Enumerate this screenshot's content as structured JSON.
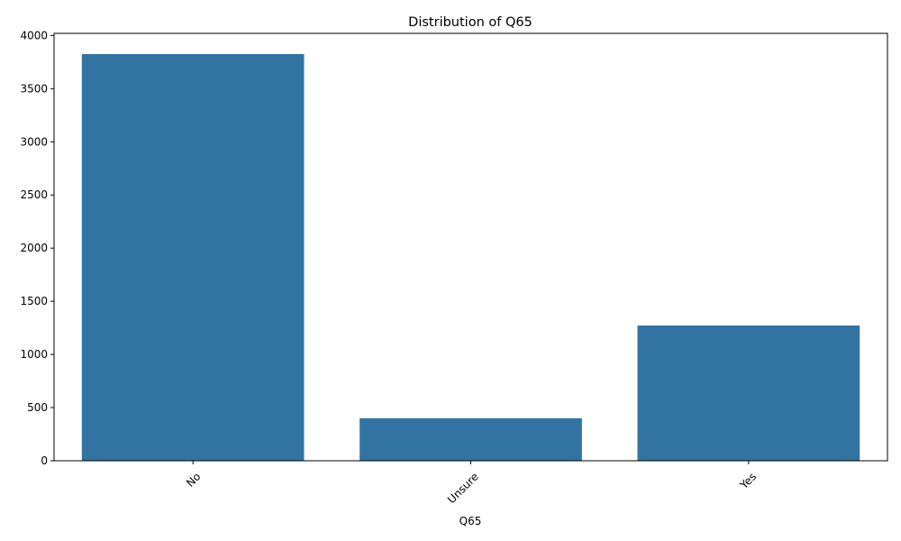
{
  "chart_data": {
    "type": "bar",
    "title": "Distribution of Q65",
    "xlabel": "Q65",
    "ylabel": "",
    "categories": [
      "No",
      "Unsure",
      "Yes"
    ],
    "values": [
      3825,
      400,
      1272
    ],
    "ylim": [
      0,
      4020
    ],
    "yticks": [
      0,
      500,
      1000,
      1500,
      2000,
      2500,
      3000,
      3500,
      4000
    ],
    "bar_color": "#3274a1",
    "grid": false,
    "legend": "none"
  }
}
